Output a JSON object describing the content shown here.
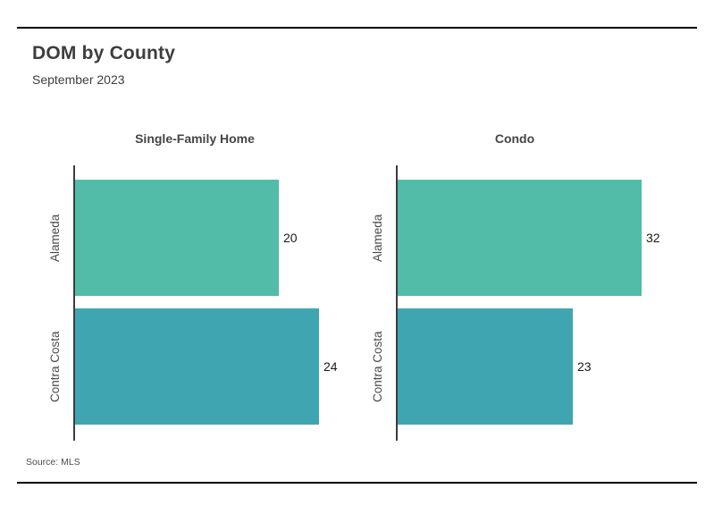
{
  "page": {
    "title": "DOM by County",
    "subtitle": "September 2023",
    "source": "Source: MLS"
  },
  "chart_data": {
    "type": "bar",
    "orientation": "horizontal",
    "title": "DOM by County",
    "subtitle": "September 2023",
    "categories": [
      "Alameda",
      "Contra Costa"
    ],
    "facets": [
      {
        "title": "Single-Family Home",
        "values": [
          20,
          24
        ]
      },
      {
        "title": "Condo",
        "values": [
          32,
          23
        ]
      }
    ],
    "value_labels": [
      [
        "20",
        "24"
      ],
      [
        "32",
        "23"
      ]
    ],
    "category_colors": [
      "#52BCA8",
      "#3FA6B1"
    ],
    "axis_color": "#3C3C3C",
    "value_label_color": "#1A1A1A",
    "grid": false,
    "legend": "none",
    "source": "Source: MLS"
  }
}
